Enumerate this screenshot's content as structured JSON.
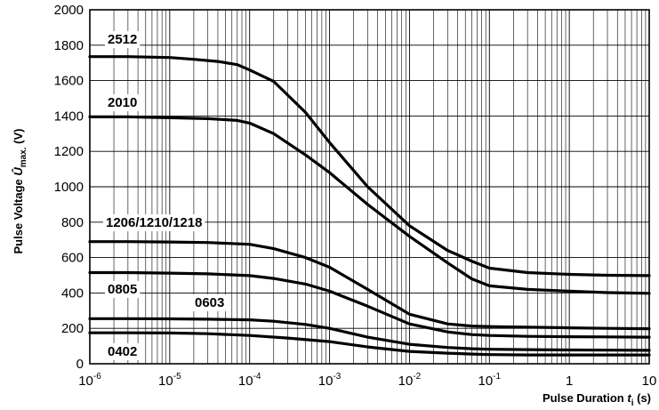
{
  "chart_data": {
    "type": "line",
    "title": "",
    "xscale": "log",
    "xlim": [
      "1e-6",
      "10"
    ],
    "ylim": [
      0,
      2000
    ],
    "grid": true,
    "xlabel": {
      "main": "Pulse Duration ",
      "var": "t",
      "sub": "i",
      "unit": " (s)"
    },
    "ylabel": {
      "main": "Pulse Voltage ",
      "var": "Û",
      "sub": "max.",
      "unit": " (V)"
    },
    "yticks": [
      "0",
      "200",
      "400",
      "600",
      "800",
      "1000",
      "1200",
      "1400",
      "1600",
      "1800",
      "2000"
    ],
    "xticks": [
      {
        "base": "10",
        "exp": "-6"
      },
      {
        "base": "10",
        "exp": "-5"
      },
      {
        "base": "10",
        "exp": "-4"
      },
      {
        "base": "10",
        "exp": "-3"
      },
      {
        "base": "10",
        "exp": "-2"
      },
      {
        "base": "10",
        "exp": "-1"
      },
      {
        "base": "1",
        "exp": ""
      },
      {
        "base": "10",
        "exp": ""
      }
    ],
    "series": [
      {
        "name": "2512",
        "x": [
          1e-06,
          3e-06,
          1e-05,
          2e-05,
          4e-05,
          7e-05,
          0.0001,
          0.0002,
          0.0005,
          0.001,
          0.003,
          0.01,
          0.03,
          0.06,
          0.1,
          0.3,
          1,
          3,
          10
        ],
        "y": [
          1735,
          1735,
          1730,
          1720,
          1708,
          1690,
          1660,
          1595,
          1420,
          1250,
          1000,
          780,
          640,
          580,
          540,
          515,
          505,
          500,
          498
        ]
      },
      {
        "name": "2010",
        "x": [
          1e-06,
          3e-06,
          1e-05,
          3e-05,
          7e-05,
          0.0001,
          0.0002,
          0.0005,
          0.001,
          0.003,
          0.01,
          0.03,
          0.06,
          0.1,
          0.3,
          1,
          3,
          10
        ],
        "y": [
          1395,
          1395,
          1390,
          1385,
          1375,
          1360,
          1300,
          1180,
          1080,
          900,
          720,
          570,
          480,
          440,
          420,
          410,
          402,
          398
        ]
      },
      {
        "name": "1206/1210/1218",
        "x": [
          1e-06,
          3e-06,
          1e-05,
          3e-05,
          0.0001,
          0.0002,
          0.0005,
          0.001,
          0.003,
          0.01,
          0.03,
          0.06,
          0.1,
          0.3,
          1,
          3,
          10
        ],
        "y": [
          690,
          690,
          688,
          685,
          675,
          650,
          600,
          545,
          420,
          280,
          225,
          213,
          210,
          207,
          203,
          200,
          198
        ]
      },
      {
        "name": "0805",
        "x": [
          1e-06,
          3e-06,
          1e-05,
          3e-05,
          0.0001,
          0.0002,
          0.0005,
          0.001,
          0.003,
          0.01,
          0.03,
          0.06,
          0.1,
          0.3,
          1,
          3,
          10
        ],
        "y": [
          515,
          515,
          512,
          508,
          498,
          482,
          450,
          410,
          325,
          225,
          180,
          165,
          160,
          155,
          153,
          152,
          150
        ]
      },
      {
        "name": "0603",
        "x": [
          1e-06,
          3e-06,
          1e-05,
          3e-05,
          0.0001,
          0.0002,
          0.0005,
          0.001,
          0.003,
          0.01,
          0.03,
          0.06,
          0.1,
          0.3,
          1,
          3,
          10
        ],
        "y": [
          255,
          255,
          254,
          252,
          248,
          240,
          222,
          200,
          150,
          110,
          92,
          85,
          82,
          80,
          78,
          77,
          76
        ]
      },
      {
        "name": "0402",
        "x": [
          1e-06,
          3e-06,
          1e-05,
          3e-05,
          0.0001,
          0.0003,
          0.001,
          0.003,
          0.01,
          0.03,
          0.06,
          0.1,
          0.3,
          1,
          3,
          10
        ],
        "y": [
          175,
          175,
          174,
          170,
          160,
          145,
          125,
          95,
          70,
          60,
          55,
          52,
          50,
          50,
          50,
          50
        ]
      }
    ]
  }
}
